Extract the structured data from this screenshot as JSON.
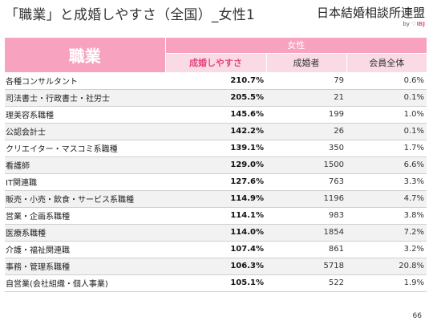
{
  "title": "「職業」と成婚しやすさ（全国）_女性1",
  "logo": {
    "name": "日本結婚相談所連盟",
    "sub_by": "by",
    "sub_mark": "♡IBJ"
  },
  "table": {
    "job_header": "職業",
    "group_header": "女性",
    "columns": [
      "成婚しやすさ",
      "成婚者",
      "会員全体"
    ],
    "rows": [
      {
        "job": "各種コンサルタント",
        "rate": "210.7%",
        "married": "79",
        "share": "0.6%"
      },
      {
        "job": "司法書士・行政書士・社労士",
        "rate": "205.5%",
        "married": "21",
        "share": "0.1%"
      },
      {
        "job": "理美容系職種",
        "rate": "145.6%",
        "married": "199",
        "share": "1.0%"
      },
      {
        "job": "公認会計士",
        "rate": "142.2%",
        "married": "26",
        "share": "0.1%"
      },
      {
        "job": "クリエイター・マスコミ系職種",
        "rate": "139.1%",
        "married": "350",
        "share": "1.7%"
      },
      {
        "job": "看護師",
        "rate": "129.0%",
        "married": "1500",
        "share": "6.6%"
      },
      {
        "job": "IT関連職",
        "rate": "127.6%",
        "married": "763",
        "share": "3.3%"
      },
      {
        "job": "販売・小売・飲食・サービス系職種",
        "rate": "114.9%",
        "married": "1196",
        "share": "4.7%"
      },
      {
        "job": "営業・企画系職種",
        "rate": "114.1%",
        "married": "983",
        "share": "3.8%"
      },
      {
        "job": "医療系職種",
        "rate": "114.0%",
        "married": "1854",
        "share": "7.2%"
      },
      {
        "job": "介護・福祉関連職",
        "rate": "107.4%",
        "married": "861",
        "share": "3.2%"
      },
      {
        "job": "事務・管理系職種",
        "rate": "106.3%",
        "married": "5718",
        "share": "20.8%"
      },
      {
        "job": "自営業(会社組織・個人事業)",
        "rate": "105.1%",
        "married": "522",
        "share": "1.9%"
      }
    ]
  },
  "page_number": "66"
}
